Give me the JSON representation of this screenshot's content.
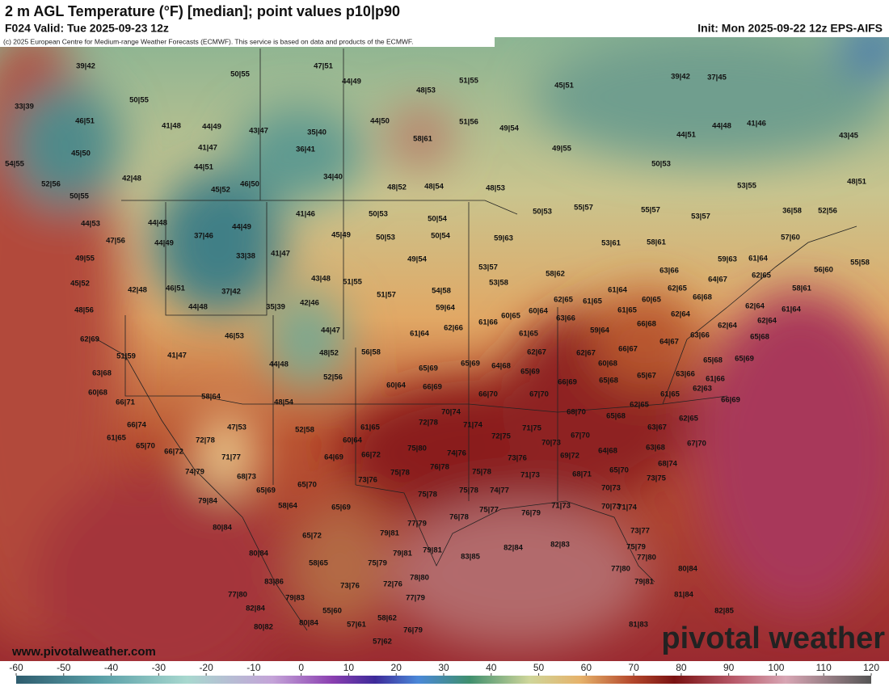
{
  "header": {
    "title": "2 m AGL Temperature (°F) [median]; point values p10|p90",
    "valid": "F024 Valid: Tue 2025-09-23 12z",
    "init": "Init: Mon 2025-09-22 12z EPS-AIFS"
  },
  "copyright": "(c) 2025 European Centre for Medium-range Weather Forecasts (ECMWF). This service is based on data and products of the ECMWF.",
  "point_values": [
    "39|42",
    "33|39",
    "46|51",
    "45|50",
    "54|55",
    "52|56",
    "50|55",
    "50|55",
    "50|55",
    "47|51",
    "44|49",
    "48|53",
    "51|55",
    "45|51",
    "44|50",
    "51|56",
    "49|54",
    "41|48",
    "44|49",
    "43|47",
    "35|40",
    "41|47",
    "36|41",
    "58|61",
    "49|55",
    "44|51",
    "44|48",
    "41|46",
    "43|45",
    "39|42",
    "37|45",
    "42|48",
    "44|51",
    "34|40",
    "45|52",
    "46|50",
    "48|52",
    "48|54",
    "48|53",
    "50|53",
    "53|55",
    "48|51",
    "44|53",
    "44|48",
    "37|46",
    "44|49",
    "41|46",
    "50|53",
    "50|54",
    "50|53",
    "55|57",
    "55|57",
    "53|57",
    "36|58",
    "52|56",
    "47|56",
    "44|49",
    "45|49",
    "50|53",
    "50|54",
    "59|63",
    "53|61",
    "58|61",
    "57|60",
    "49|55",
    "33|38",
    "41|47",
    "49|54",
    "53|57",
    "59|63",
    "61|64",
    "55|58",
    "56|60",
    "45|52",
    "42|48",
    "46|51",
    "43|48",
    "51|55",
    "53|58",
    "58|62",
    "63|66",
    "62|65",
    "64|67",
    "37|42",
    "54|58",
    "51|57",
    "61|64",
    "62|65",
    "58|61",
    "48|56",
    "44|48",
    "35|39",
    "42|46",
    "62|65",
    "61|65",
    "66|68",
    "62|64",
    "61|64",
    "59|64",
    "60|65",
    "60|64",
    "63|66",
    "61|65",
    "60|65",
    "62|64",
    "62|64",
    "62|64",
    "46|53",
    "44|47",
    "62|69",
    "61|64",
    "62|66",
    "61|66",
    "61|65",
    "59|64",
    "66|68",
    "63|66",
    "65|68",
    "64|67",
    "51|59",
    "41|47",
    "48|52",
    "56|58",
    "62|67",
    "62|67",
    "66|67",
    "65|68",
    "65|69",
    "44|48",
    "60|68",
    "65|69",
    "65|69",
    "64|68",
    "65|69",
    "63|68",
    "52|56",
    "65|68",
    "65|67",
    "63|66",
    "61|66",
    "66|69",
    "60|64",
    "66|69",
    "60|68",
    "62|63",
    "58|64",
    "61|65",
    "66|70",
    "67|70",
    "66|69",
    "66|71",
    "48|54",
    "62|65",
    "70|74",
    "68|70",
    "65|68",
    "62|65",
    "66|74",
    "72|78",
    "71|74",
    "71|75",
    "63|67",
    "61|65",
    "47|53",
    "52|58",
    "61|65",
    "72|78",
    "72|75",
    "70|73",
    "67|70",
    "63|68",
    "67|70",
    "65|70",
    "66|72",
    "60|64",
    "75|80",
    "74|76",
    "64|69",
    "66|72",
    "71|77",
    "73|76",
    "69|72",
    "64|68",
    "68|74",
    "74|79",
    "68|73",
    "76|78",
    "75|78",
    "75|78",
    "65|70",
    "71|73",
    "68|71",
    "73|75",
    "73|76",
    "65|69",
    "65|70",
    "75|78",
    "74|77",
    "70|73",
    "75|78",
    "79|84",
    "58|64",
    "65|69",
    "76|78",
    "75|77",
    "76|79",
    "71|73",
    "70|73",
    "71|74",
    "80|84",
    "77|79",
    "79|81",
    "65|72",
    "73|77",
    "79|81",
    "79|81",
    "83|85",
    "82|84",
    "82|83",
    "75|79",
    "80|84",
    "77|80",
    "58|65",
    "75|79",
    "77|80",
    "80|84",
    "83|86",
    "78|80",
    "73|76",
    "72|76",
    "79|81",
    "77|80",
    "77|79",
    "79|83",
    "81|84",
    "82|84",
    "55|60",
    "58|62",
    "82|85",
    "57|61",
    "80|82",
    "80|84",
    "76|79",
    "81|83",
    "57|62"
  ],
  "watermark": {
    "site": "www.pivotalweather.com",
    "brand": "pivotal weather"
  },
  "colorbar": {
    "lim": [
      -60,
      120
    ],
    "ticks": [
      -60,
      -50,
      -40,
      -30,
      -20,
      -10,
      0,
      10,
      20,
      30,
      40,
      50,
      60,
      70,
      80,
      90,
      100,
      110,
      120
    ]
  }
}
